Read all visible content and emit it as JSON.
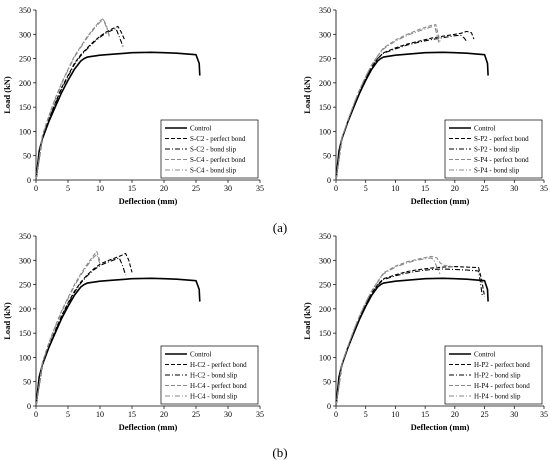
{
  "figure_labels": [
    "(a)",
    "(b)"
  ],
  "chart_data": [
    {
      "type": "line",
      "xlabel": "Deflection (mm)",
      "ylabel": "Load (kN)",
      "xlim": [
        0,
        35
      ],
      "ylim": [
        0,
        350
      ],
      "xticks": [
        0,
        5,
        10,
        15,
        20,
        25,
        30,
        35
      ],
      "yticks": [
        0,
        50,
        100,
        150,
        200,
        250,
        300,
        350
      ],
      "grid": false,
      "legend_position": "bottom-right",
      "series": [
        {
          "name": "Control",
          "style": "solid",
          "color": "#000000",
          "x": [
            0,
            0.5,
            1,
            2,
            3,
            4,
            5,
            6,
            7,
            7.5,
            8,
            10,
            12,
            15,
            18,
            20,
            22,
            24,
            25,
            25.5,
            25.6
          ],
          "y": [
            0,
            60,
            85,
            120,
            150,
            180,
            205,
            228,
            245,
            250,
            253,
            257,
            259,
            262,
            263,
            262,
            261,
            259,
            258,
            240,
            215
          ]
        },
        {
          "name": "S-C2 - perfect bond",
          "style": "dash",
          "color": "#000000",
          "x": [
            0,
            1,
            2,
            3,
            4,
            5,
            6,
            7,
            8,
            9,
            10,
            11,
            12,
            12.8,
            13.3,
            13.8
          ],
          "y": [
            0,
            88,
            125,
            158,
            190,
            215,
            240,
            258,
            272,
            285,
            296,
            305,
            312,
            316,
            305,
            290
          ]
        },
        {
          "name": "S-C2 - bond slip",
          "style": "dashdot",
          "color": "#000000",
          "x": [
            0,
            1,
            2,
            3,
            4,
            5,
            6,
            7,
            8,
            9,
            10,
            11,
            12,
            12.5,
            13,
            13.6
          ],
          "y": [
            0,
            86,
            123,
            156,
            188,
            213,
            238,
            256,
            270,
            283,
            294,
            303,
            309,
            312,
            295,
            275
          ]
        },
        {
          "name": "S-C4 - perfect bond",
          "style": "dash",
          "color": "#8a8a8a",
          "x": [
            0,
            1,
            2,
            3,
            4,
            5,
            6,
            7,
            8,
            9,
            10,
            10.5,
            11,
            11.5
          ],
          "y": [
            0,
            92,
            132,
            168,
            200,
            228,
            255,
            275,
            295,
            312,
            328,
            332,
            318,
            295
          ]
        },
        {
          "name": "S-C4 - bond slip",
          "style": "dashdot",
          "color": "#8a8a8a",
          "x": [
            0,
            1,
            2,
            3,
            4,
            5,
            6,
            7,
            8,
            9,
            10,
            10.5,
            11,
            11.5
          ],
          "y": [
            0,
            90,
            130,
            166,
            198,
            226,
            253,
            273,
            293,
            310,
            325,
            330,
            315,
            293
          ]
        }
      ]
    },
    {
      "type": "line",
      "xlabel": "Deflection (mm)",
      "ylabel": "Load (kN)",
      "xlim": [
        0,
        35
      ],
      "ylim": [
        0,
        350
      ],
      "xticks": [
        0,
        5,
        10,
        15,
        20,
        25,
        30,
        35
      ],
      "yticks": [
        0,
        50,
        100,
        150,
        200,
        250,
        300,
        350
      ],
      "grid": false,
      "legend_position": "bottom-right",
      "series": [
        {
          "name": "Control",
          "style": "solid",
          "color": "#000000",
          "x": [
            0,
            0.5,
            1,
            2,
            3,
            4,
            5,
            6,
            7,
            7.5,
            8,
            10,
            12,
            15,
            18,
            20,
            22,
            24,
            25,
            25.5,
            25.6
          ],
          "y": [
            0,
            60,
            85,
            120,
            150,
            180,
            205,
            228,
            245,
            250,
            253,
            257,
            259,
            262,
            263,
            262,
            261,
            259,
            258,
            240,
            215
          ]
        },
        {
          "name": "S-P2 - perfect bond",
          "style": "dash",
          "color": "#000000",
          "x": [
            0,
            1,
            2,
            3,
            4,
            5,
            6,
            7,
            8,
            10,
            12,
            14,
            16,
            18,
            20,
            21,
            22,
            22.8,
            23.2
          ],
          "y": [
            0,
            85,
            120,
            152,
            182,
            208,
            232,
            250,
            262,
            272,
            280,
            286,
            292,
            296,
            300,
            302,
            306,
            303,
            290
          ]
        },
        {
          "name": "S-P2 - bond slip",
          "style": "dashdot",
          "color": "#000000",
          "x": [
            0,
            1,
            2,
            3,
            4,
            5,
            6,
            7,
            8,
            10,
            12,
            14,
            16,
            18,
            20,
            21,
            21.6,
            22
          ],
          "y": [
            0,
            85,
            120,
            152,
            182,
            208,
            232,
            250,
            261,
            270,
            278,
            284,
            289,
            293,
            297,
            298,
            292,
            285
          ]
        },
        {
          "name": "S-P4 - perfect bond",
          "style": "dash",
          "color": "#8a8a8a",
          "x": [
            0,
            1,
            2,
            3,
            4,
            5,
            6,
            7,
            8,
            10,
            12,
            14,
            16,
            16.8,
            17.2,
            17.5
          ],
          "y": [
            0,
            87,
            123,
            156,
            187,
            213,
            237,
            255,
            272,
            288,
            300,
            310,
            318,
            320,
            300,
            285
          ]
        },
        {
          "name": "S-P4 - bond slip",
          "style": "dashdot",
          "color": "#8a8a8a",
          "x": [
            0,
            1,
            2,
            3,
            4,
            5,
            6,
            7,
            8,
            10,
            12,
            14,
            16,
            16.6,
            17,
            17.3
          ],
          "y": [
            0,
            87,
            123,
            156,
            187,
            213,
            237,
            255,
            270,
            286,
            298,
            307,
            315,
            317,
            298,
            283
          ]
        }
      ]
    },
    {
      "type": "line",
      "xlabel": "Deflection (mm)",
      "ylabel": "Load (kN)",
      "xlim": [
        0,
        35
      ],
      "ylim": [
        0,
        350
      ],
      "xticks": [
        0,
        5,
        10,
        15,
        20,
        25,
        30,
        35
      ],
      "yticks": [
        0,
        50,
        100,
        150,
        200,
        250,
        300,
        350
      ],
      "grid": false,
      "legend_position": "bottom-right",
      "series": [
        {
          "name": "Control",
          "style": "solid",
          "color": "#000000",
          "x": [
            0,
            0.5,
            1,
            2,
            3,
            4,
            5,
            6,
            7,
            7.5,
            8,
            10,
            12,
            15,
            18,
            20,
            22,
            24,
            25,
            25.5,
            25.6
          ],
          "y": [
            0,
            60,
            85,
            120,
            150,
            180,
            205,
            228,
            245,
            250,
            253,
            257,
            259,
            262,
            263,
            262,
            261,
            259,
            258,
            240,
            215
          ]
        },
        {
          "name": "H-C2 - perfect bond",
          "style": "dash",
          "color": "#000000",
          "x": [
            0,
            1,
            2,
            3,
            4,
            5,
            6,
            7,
            8,
            9,
            10,
            11,
            12,
            13,
            14,
            14.5,
            15
          ],
          "y": [
            0,
            85,
            122,
            155,
            186,
            212,
            236,
            255,
            270,
            282,
            292,
            298,
            303,
            308,
            314,
            300,
            275
          ]
        },
        {
          "name": "H-C2 - bond slip",
          "style": "dashdot",
          "color": "#000000",
          "x": [
            0,
            1,
            2,
            3,
            4,
            5,
            6,
            7,
            8,
            9,
            10,
            11,
            12,
            13,
            13.5,
            14
          ],
          "y": [
            0,
            84,
            120,
            153,
            184,
            210,
            234,
            253,
            268,
            280,
            289,
            295,
            300,
            305,
            290,
            270
          ]
        },
        {
          "name": "H-C4 - perfect bond",
          "style": "dash",
          "color": "#8a8a8a",
          "x": [
            0,
            1,
            2,
            3,
            4,
            5,
            6,
            7,
            8,
            9,
            9.5,
            10
          ],
          "y": [
            0,
            90,
            130,
            164,
            196,
            223,
            250,
            272,
            292,
            310,
            318,
            298
          ]
        },
        {
          "name": "H-C4 - bond slip",
          "style": "dashdot",
          "color": "#8a8a8a",
          "x": [
            0,
            1,
            2,
            3,
            4,
            5,
            6,
            7,
            8,
            9,
            9.5,
            10
          ],
          "y": [
            0,
            88,
            128,
            162,
            194,
            221,
            247,
            269,
            289,
            306,
            312,
            292
          ]
        }
      ]
    },
    {
      "type": "line",
      "xlabel": "Deflection (mm)",
      "ylabel": "Load (kN)",
      "xlim": [
        0,
        35
      ],
      "ylim": [
        0,
        350
      ],
      "xticks": [
        0,
        5,
        10,
        15,
        20,
        25,
        30,
        35
      ],
      "yticks": [
        0,
        50,
        100,
        150,
        200,
        250,
        300,
        350
      ],
      "grid": false,
      "legend_position": "bottom-right",
      "series": [
        {
          "name": "Control",
          "style": "solid",
          "color": "#000000",
          "x": [
            0,
            0.5,
            1,
            2,
            3,
            4,
            5,
            6,
            7,
            7.5,
            8,
            10,
            12,
            15,
            18,
            20,
            22,
            24,
            25,
            25.5,
            25.6
          ],
          "y": [
            0,
            60,
            85,
            120,
            150,
            180,
            205,
            228,
            245,
            250,
            253,
            257,
            259,
            262,
            263,
            262,
            261,
            259,
            258,
            240,
            215
          ]
        },
        {
          "name": "H-P2 - perfect bond",
          "style": "dash",
          "color": "#000000",
          "x": [
            0,
            1,
            2,
            3,
            4,
            5,
            6,
            7,
            8,
            10,
            12,
            14,
            16,
            18,
            20,
            22,
            24,
            24.5,
            25
          ],
          "y": [
            0,
            84,
            120,
            152,
            182,
            208,
            232,
            250,
            262,
            270,
            277,
            281,
            284,
            286,
            287,
            286,
            285,
            260,
            225
          ]
        },
        {
          "name": "H-P2 - bond slip",
          "style": "dashdot",
          "color": "#000000",
          "x": [
            0,
            1,
            2,
            3,
            4,
            5,
            6,
            7,
            8,
            10,
            12,
            14,
            16,
            18,
            20,
            22,
            24,
            24.3,
            24.6
          ],
          "y": [
            0,
            84,
            120,
            152,
            182,
            208,
            232,
            249,
            260,
            268,
            274,
            278,
            281,
            282,
            281,
            280,
            278,
            255,
            228
          ]
        },
        {
          "name": "H-P4 - perfect bond",
          "style": "dash",
          "color": "#8a8a8a",
          "x": [
            0,
            1,
            2,
            3,
            4,
            5,
            6,
            7,
            8,
            10,
            12,
            14,
            16,
            17,
            17.5,
            18,
            20
          ],
          "y": [
            0,
            87,
            123,
            156,
            187,
            213,
            237,
            256,
            274,
            288,
            297,
            303,
            308,
            305,
            295,
            290,
            286
          ]
        },
        {
          "name": "H-P4 - bond slip",
          "style": "dashdot",
          "color": "#8a8a8a",
          "x": [
            0,
            1,
            2,
            3,
            4,
            5,
            6,
            7,
            8,
            10,
            12,
            14,
            16,
            16.5,
            17,
            17.5
          ],
          "y": [
            0,
            87,
            123,
            156,
            187,
            213,
            237,
            255,
            272,
            286,
            295,
            301,
            305,
            300,
            285,
            272
          ]
        }
      ]
    }
  ]
}
